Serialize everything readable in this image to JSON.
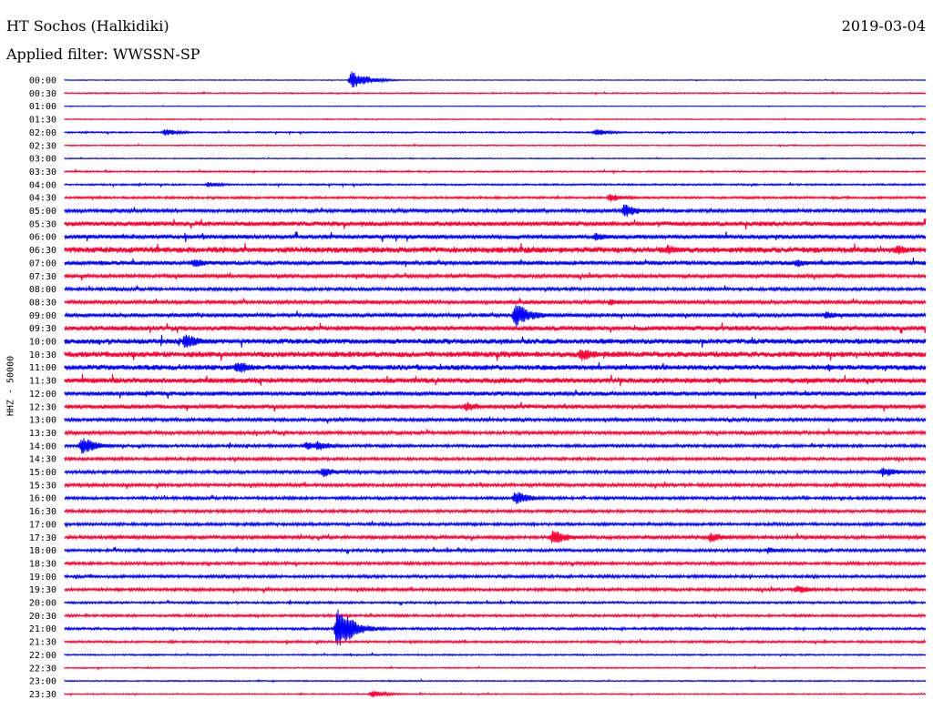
{
  "header": {
    "station": "HT Sochos (Halkidiki)",
    "date": "2019-03-04",
    "filter": "Applied filter: WWSSN-SP"
  },
  "colors": {
    "even": "#0000ff",
    "odd": "#ff0033"
  },
  "chart_data": {
    "type": "line",
    "title": "HT Sochos (Halkidiki)",
    "subtitle": "Applied filter: WWSSN-SP",
    "ylabel": "HHZ - 50000",
    "xlabel": "",
    "grid": false,
    "row_labels": [
      "00:00",
      "00:30",
      "01:00",
      "01:30",
      "02:00",
      "02:30",
      "03:00",
      "03:30",
      "04:00",
      "04:30",
      "05:00",
      "05:30",
      "06:00",
      "06:30",
      "07:00",
      "07:30",
      "08:00",
      "08:30",
      "09:00",
      "09:30",
      "10:00",
      "10:30",
      "11:00",
      "11:30",
      "12:00",
      "12:30",
      "13:00",
      "13:30",
      "14:00",
      "14:30",
      "15:00",
      "15:30",
      "16:00",
      "16:30",
      "17:00",
      "17:30",
      "18:00",
      "18:30",
      "19:00",
      "19:30",
      "20:00",
      "20:30",
      "21:00",
      "21:30",
      "22:00",
      "22:30",
      "23:00",
      "23:30"
    ],
    "noise_level": [
      0.3,
      0.5,
      0.25,
      0.4,
      0.6,
      0.5,
      0.4,
      0.6,
      0.7,
      0.9,
      1.5,
      2.0,
      1.8,
      2.5,
      1.8,
      1.5,
      1.3,
      1.5,
      1.6,
      2.0,
      2.2,
      2.4,
      2.2,
      2.2,
      1.8,
      1.8,
      1.4,
      1.4,
      1.2,
      1.2,
      1.3,
      1.3,
      1.2,
      1.2,
      1.2,
      1.4,
      1.2,
      1.2,
      1.2,
      1.2,
      0.9,
      1.0,
      1.0,
      0.9,
      0.6,
      0.5,
      0.5,
      0.5
    ],
    "events": [
      {
        "row": 0,
        "minute": 10.0,
        "amp": 10
      },
      {
        "row": 4,
        "minute": 3.5,
        "amp": 4
      },
      {
        "row": 4,
        "minute": 18.5,
        "amp": 4
      },
      {
        "row": 8,
        "minute": 5.0,
        "amp": 3
      },
      {
        "row": 9,
        "minute": 19.0,
        "amp": 5
      },
      {
        "row": 10,
        "minute": 19.5,
        "amp": 8
      },
      {
        "row": 12,
        "minute": 18.5,
        "amp": 5
      },
      {
        "row": 13,
        "minute": 21.0,
        "amp": 6
      },
      {
        "row": 13,
        "minute": 29.0,
        "amp": 6
      },
      {
        "row": 14,
        "minute": 4.5,
        "amp": 6
      },
      {
        "row": 14,
        "minute": 25.5,
        "amp": 5
      },
      {
        "row": 17,
        "minute": 19.0,
        "amp": 4
      },
      {
        "row": 18,
        "minute": 15.7,
        "amp": 14
      },
      {
        "row": 18,
        "minute": 26.5,
        "amp": 5
      },
      {
        "row": 20,
        "minute": 4.2,
        "amp": 9
      },
      {
        "row": 21,
        "minute": 18.0,
        "amp": 8
      },
      {
        "row": 22,
        "minute": 6.0,
        "amp": 8
      },
      {
        "row": 25,
        "minute": 14.0,
        "amp": 6
      },
      {
        "row": 28,
        "minute": 0.6,
        "amp": 10
      },
      {
        "row": 28,
        "minute": 8.4,
        "amp": 5
      },
      {
        "row": 28,
        "minute": 8.8,
        "amp": 6
      },
      {
        "row": 30,
        "minute": 9.0,
        "amp": 6
      },
      {
        "row": 30,
        "minute": 28.5,
        "amp": 6
      },
      {
        "row": 32,
        "minute": 15.7,
        "amp": 8
      },
      {
        "row": 35,
        "minute": 17.0,
        "amp": 9
      },
      {
        "row": 35,
        "minute": 22.5,
        "amp": 6
      },
      {
        "row": 36,
        "minute": 24.5,
        "amp": 4
      },
      {
        "row": 39,
        "minute": 25.5,
        "amp": 5
      },
      {
        "row": 42,
        "minute": 9.5,
        "amp": 24
      },
      {
        "row": 47,
        "minute": 10.7,
        "amp": 4
      }
    ]
  }
}
